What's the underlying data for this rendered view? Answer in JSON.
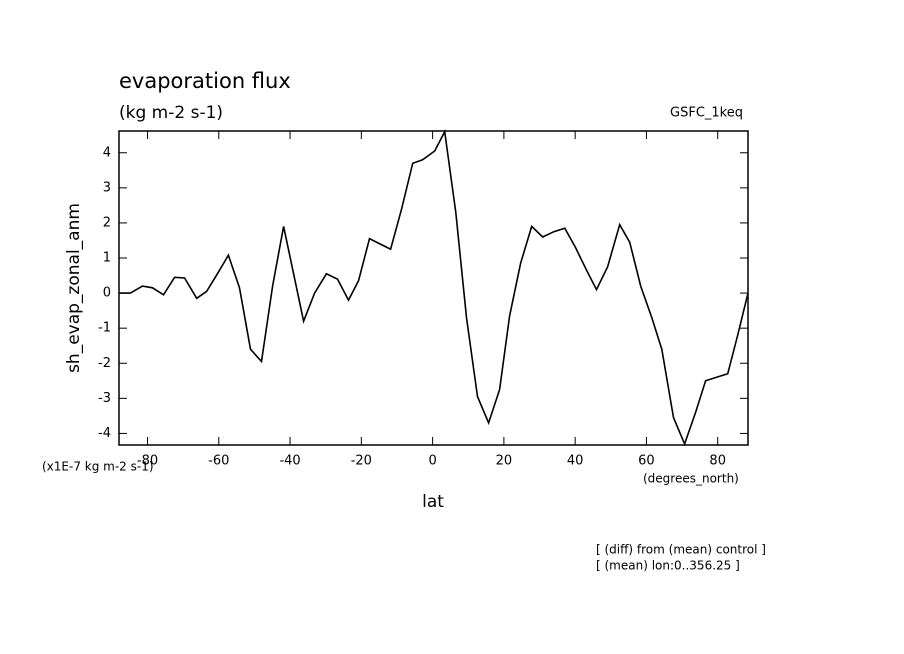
{
  "chart_data": {
    "type": "line",
    "title": "evaporation flux",
    "subtitle": "(kg m-2 s-1)",
    "experiment": "GSFC_1keq",
    "y_label": "sh_evap_zonal_anm",
    "x_label": "lat",
    "y_units": "(x1E-7 kg m-2 s-1)",
    "x_units": "(degrees_north)",
    "notes": [
      "[ (diff) from (mean) control ]",
      "[ (mean) lon:0..356.25 ]"
    ],
    "color": "#000000",
    "x": [
      -87.9,
      -84.8,
      -81.4,
      -78.6,
      -75.5,
      -72.4,
      -69.6,
      -66.2,
      -63.4,
      -60.4,
      -57.3,
      -54.2,
      -51.1,
      -48.0,
      -44.9,
      -41.8,
      -36.2,
      -33.1,
      -29.8,
      -26.7,
      -23.6,
      -20.8,
      -17.7,
      -11.8,
      -8.7,
      -5.6,
      -2.8,
      0.6,
      3.4,
      6.5,
      9.5,
      12.6,
      15.7,
      18.8,
      21.6,
      24.7,
      27.8,
      30.9,
      34.0,
      37.1,
      40.1,
      43.2,
      46.0,
      49.1,
      52.5,
      55.3,
      58.4,
      61.5,
      64.3,
      67.6,
      70.7,
      73.8,
      76.6,
      79.7,
      82.8,
      85.6,
      88.5
    ],
    "values": [
      0,
      0,
      0.2,
      0.15,
      -0.05,
      0.45,
      0.43,
      -0.15,
      0.05,
      0.55,
      1.08,
      0.15,
      -1.6,
      -1.95,
      0.2,
      1.9,
      -0.8,
      0,
      0.55,
      0.4,
      -0.2,
      0.35,
      1.55,
      1.25,
      2.4,
      3.7,
      3.8,
      4.05,
      4.6,
      2.3,
      -0.7,
      -2.95,
      -3.7,
      -2.75,
      -0.65,
      0.85,
      1.9,
      1.6,
      1.75,
      1.85,
      1.3,
      0.65,
      0.1,
      0.75,
      1.95,
      1.45,
      0.2,
      -0.7,
      -1.6,
      -3.55,
      -4.3,
      -3.4,
      -2.5,
      -2.4,
      -2.3,
      -1.2,
      0
    ],
    "xlim": [
      -88,
      88.5
    ],
    "ylim": [
      -4.33,
      4.62
    ],
    "xticks": [
      -80,
      -60,
      -40,
      -20,
      0,
      20,
      40,
      60,
      80
    ],
    "yticks": [
      -4,
      -3,
      -2,
      -1,
      0,
      1,
      2,
      3,
      4
    ]
  }
}
